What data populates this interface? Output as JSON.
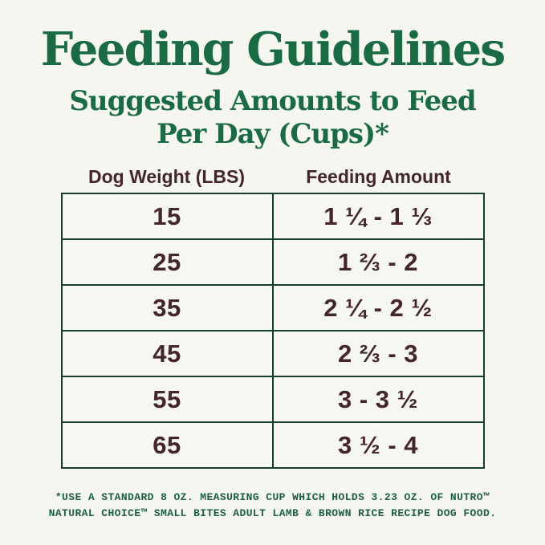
{
  "header": {
    "title": "Feeding Guidelines",
    "subtitle_line1": "Suggested Amounts to Feed",
    "subtitle_line2": "Per Day (Cups)*"
  },
  "table": {
    "headers": [
      "Dog Weight (LBS)",
      "Feeding Amount"
    ],
    "rows": [
      {
        "weight": "15",
        "amount": "1 ¼ - 1 ⅓"
      },
      {
        "weight": "25",
        "amount": "1 ⅔ - 2"
      },
      {
        "weight": "35",
        "amount": "2 ¼ - 2 ½"
      },
      {
        "weight": "45",
        "amount": "2 ⅔ - 3"
      },
      {
        "weight": "55",
        "amount": "3 - 3 ½"
      },
      {
        "weight": "65",
        "amount": "3 ½ - 4"
      }
    ]
  },
  "footnote": {
    "line1": "*USE A STANDARD 8 OZ. MEASURING CUP WHICH HOLDS 3.23 OZ. OF NUTRO™",
    "line2": "NATURAL CHOICE™ SMALL BITES ADULT LAMB & BROWN RICE RECIPE DOG FOOD."
  },
  "colors": {
    "background": "#f4f6ef",
    "brand_green": "#1a6b43",
    "table_border_green": "#16402c",
    "text_maroon": "#44252a",
    "footnote_green": "#1e5f41"
  }
}
